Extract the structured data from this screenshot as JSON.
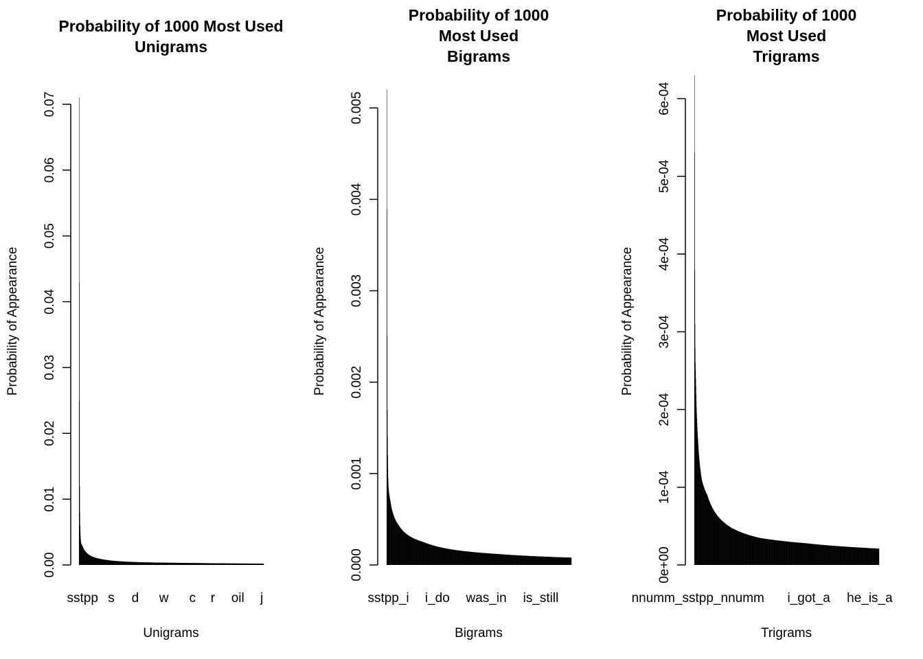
{
  "chart_data": [
    {
      "type": "bar",
      "title": [
        "Probability of 1000 Most Used",
        "Unigrams"
      ],
      "xlabel": "Unigrams",
      "ylabel": "Probability of Appearance",
      "ylim": [
        0,
        0.075
      ],
      "y_ticks": [
        0.0,
        0.01,
        0.02,
        0.03,
        0.04,
        0.05,
        0.06,
        0.07
      ],
      "y_tick_labels": [
        "0.00",
        "0.01",
        "0.02",
        "0.03",
        "0.04",
        "0.05",
        "0.06",
        "0.07"
      ],
      "n_bars": 1000,
      "x_tick_labels": [
        {
          "label": "sstpp",
          "rank": 20
        },
        {
          "label": "s",
          "rank": 175
        },
        {
          "label": "d",
          "rank": 305
        },
        {
          "label": "w",
          "rank": 460
        },
        {
          "label": "c",
          "rank": 615
        },
        {
          "label": "r",
          "rank": 725
        },
        {
          "label": "oil",
          "rank": 860
        },
        {
          "label": "j",
          "rank": 990
        }
      ],
      "values_top10": [
        0.071,
        0.043,
        0.025,
        0.012,
        0.008,
        0.006,
        0.0052,
        0.0045,
        0.004,
        0.0036
      ],
      "values_tail_profile": [
        {
          "rank": 10,
          "value": 0.0035
        },
        {
          "rank": 20,
          "value": 0.0028
        },
        {
          "rank": 40,
          "value": 0.0019
        },
        {
          "rank": 70,
          "value": 0.0013
        },
        {
          "rank": 120,
          "value": 0.0009
        },
        {
          "rank": 200,
          "value": 0.0006
        },
        {
          "rank": 350,
          "value": 0.0004
        },
        {
          "rank": 600,
          "value": 0.0003
        },
        {
          "rank": 1000,
          "value": 0.0002
        }
      ]
    },
    {
      "type": "bar",
      "title": [
        "Probability of 1000",
        "Most Used",
        "Bigrams"
      ],
      "xlabel": "Bigrams",
      "ylabel": "Probability of Appearance",
      "ylim": [
        0,
        0.0054
      ],
      "y_ticks": [
        0.0,
        0.001,
        0.002,
        0.003,
        0.004,
        0.005
      ],
      "y_tick_labels": [
        "0.000",
        "0.001",
        "0.002",
        "0.003",
        "0.004",
        "0.005"
      ],
      "n_bars": 1000,
      "x_tick_labels": [
        {
          "label": "sstpp_i",
          "rank": 10
        },
        {
          "label": "i_do",
          "rank": 275
        },
        {
          "label": "was_in",
          "rank": 540
        },
        {
          "label": "is_still",
          "rank": 835
        }
      ],
      "values_top10": [
        0.0052,
        0.0039,
        0.0025,
        0.0017,
        0.0014,
        0.0012,
        0.00105,
        0.00095,
        0.0009,
        0.00085
      ],
      "values_tail_profile": [
        {
          "rank": 10,
          "value": 0.00085
        },
        {
          "rank": 20,
          "value": 0.0007
        },
        {
          "rank": 40,
          "value": 0.00053
        },
        {
          "rank": 70,
          "value": 0.00042
        },
        {
          "rank": 120,
          "value": 0.00032
        },
        {
          "rank": 200,
          "value": 0.00025
        },
        {
          "rank": 350,
          "value": 0.00017
        },
        {
          "rank": 600,
          "value": 0.00012
        },
        {
          "rank": 1000,
          "value": 8e-05
        }
      ]
    },
    {
      "type": "bar",
      "title": [
        "Probability of 1000",
        "Most Used",
        "Trigrams"
      ],
      "xlabel": "Trigrams",
      "ylabel": "Probability of Appearance",
      "ylim": [
        0,
        0.000635
      ],
      "y_ticks": [
        0.0,
        0.0001,
        0.0002,
        0.0003,
        0.0004,
        0.0005,
        0.0006
      ],
      "y_tick_labels": [
        "0e+00",
        "1e-04",
        "2e-04",
        "3e-04",
        "4e-04",
        "5e-04",
        "6e-04"
      ],
      "n_bars": 1000,
      "x_tick_labels": [
        {
          "label": "nnumm_sstpp_nnumm",
          "rank": 20
        },
        {
          "label": "i_got_a",
          "rank": 620
        },
        {
          "label": "he_is_a",
          "rank": 950
        }
      ],
      "values_top10": [
        0.00063,
        0.00053,
        0.00038,
        0.00031,
        0.00028,
        0.00026,
        0.00025,
        0.00024,
        0.00023,
        0.00022
      ],
      "values_tail_profile": [
        {
          "rank": 10,
          "value": 0.00022
        },
        {
          "rank": 20,
          "value": 0.00016
        },
        {
          "rank": 40,
          "value": 0.00011
        },
        {
          "rank": 70,
          "value": 9e-05
        },
        {
          "rank": 120,
          "value": 6.5e-05
        },
        {
          "rank": 200,
          "value": 4.8e-05
        },
        {
          "rank": 350,
          "value": 3.5e-05
        },
        {
          "rank": 600,
          "value": 2.8e-05
        },
        {
          "rank": 1000,
          "value": 2.1e-05
        }
      ]
    }
  ]
}
